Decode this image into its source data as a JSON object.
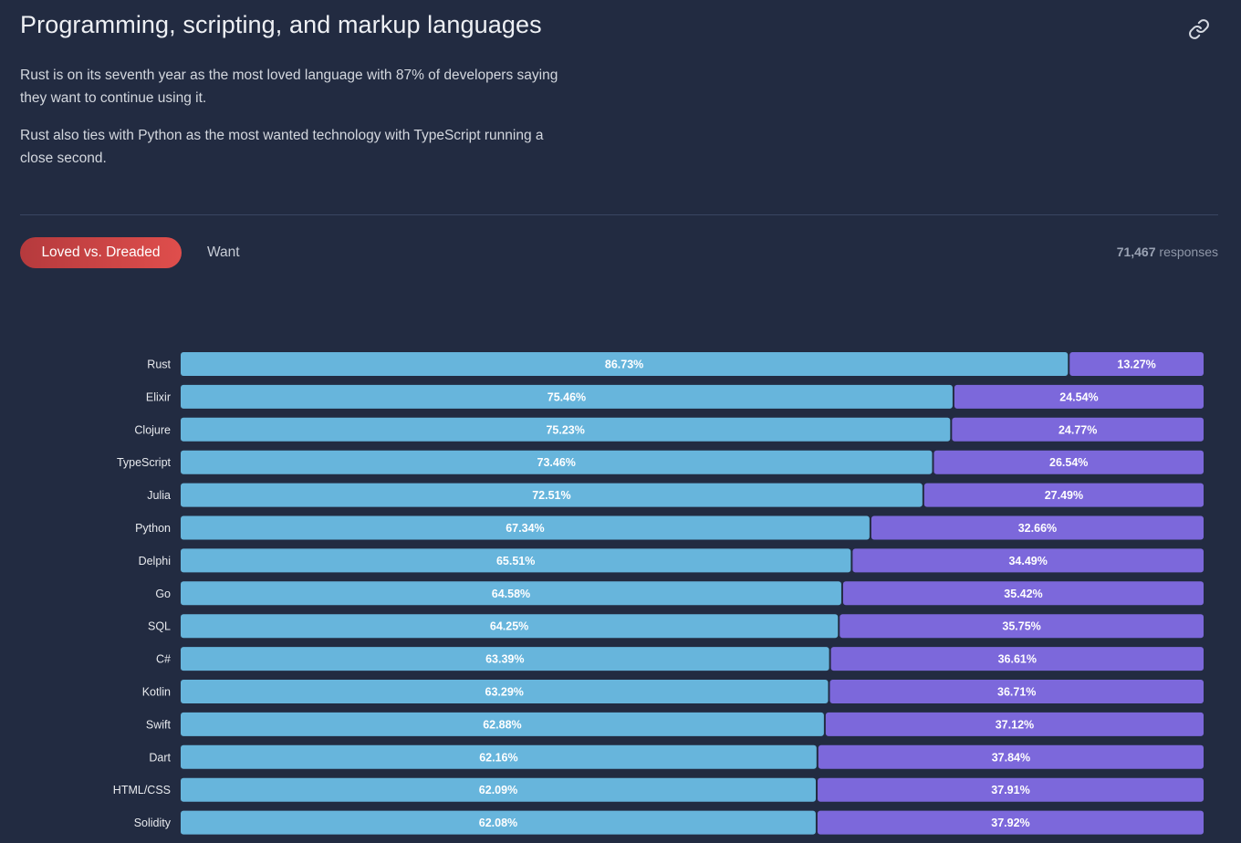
{
  "section": {
    "title": "Programming, scripting, and markup languages",
    "link_icon": "link-icon",
    "paragraphs": [
      "Rust is on its seventh year as the most loved language with 87% of developers saying they want to continue using it.",
      "Rust also ties with Python as the most wanted technology with TypeScript running a close second."
    ]
  },
  "tabs": [
    {
      "label": "Loved vs. Dreaded",
      "active": true
    },
    {
      "label": "Want",
      "active": false
    }
  ],
  "responses": {
    "count": "71,467",
    "label": "responses"
  },
  "colors": {
    "loved": "#67b5dc",
    "dreaded": "#7c68db",
    "tab_active_start": "#b53a3d",
    "tab_active_end": "#df4e4c",
    "background": "#222b41"
  },
  "chart_data": {
    "type": "bar",
    "orientation": "horizontal-stacked-100",
    "series": [
      {
        "name": "Loved",
        "values": [
          86.73,
          75.46,
          75.23,
          73.46,
          72.51,
          67.34,
          65.51,
          64.58,
          64.25,
          63.39,
          63.29,
          62.88,
          62.16,
          62.09,
          62.08
        ],
        "labels": [
          "86.73%",
          "75.46%",
          "75.23%",
          "73.46%",
          "72.51%",
          "67.34%",
          "65.51%",
          "64.58%",
          "64.25%",
          "63.39%",
          "63.29%",
          "62.88%",
          "62.16%",
          "62.09%",
          "62.08%"
        ]
      },
      {
        "name": "Dreaded",
        "values": [
          13.27,
          24.54,
          24.77,
          26.54,
          27.49,
          32.66,
          34.49,
          35.42,
          35.75,
          36.61,
          36.71,
          37.12,
          37.84,
          37.91,
          37.92
        ],
        "labels": [
          "13.27%",
          "24.54%",
          "24.77%",
          "26.54%",
          "27.49%",
          "32.66%",
          "34.49%",
          "35.42%",
          "35.75%",
          "36.61%",
          "36.71%",
          "37.12%",
          "37.84%",
          "37.91%",
          "37.92%"
        ]
      }
    ],
    "categories": [
      "Rust",
      "Elixir",
      "Clojure",
      "TypeScript",
      "Julia",
      "Python",
      "Delphi",
      "Go",
      "SQL",
      "C#",
      "Kotlin",
      "Swift",
      "Dart",
      "HTML/CSS",
      "Solidity"
    ],
    "xlim": [
      0,
      100
    ],
    "title": "",
    "xlabel": "",
    "ylabel": ""
  }
}
